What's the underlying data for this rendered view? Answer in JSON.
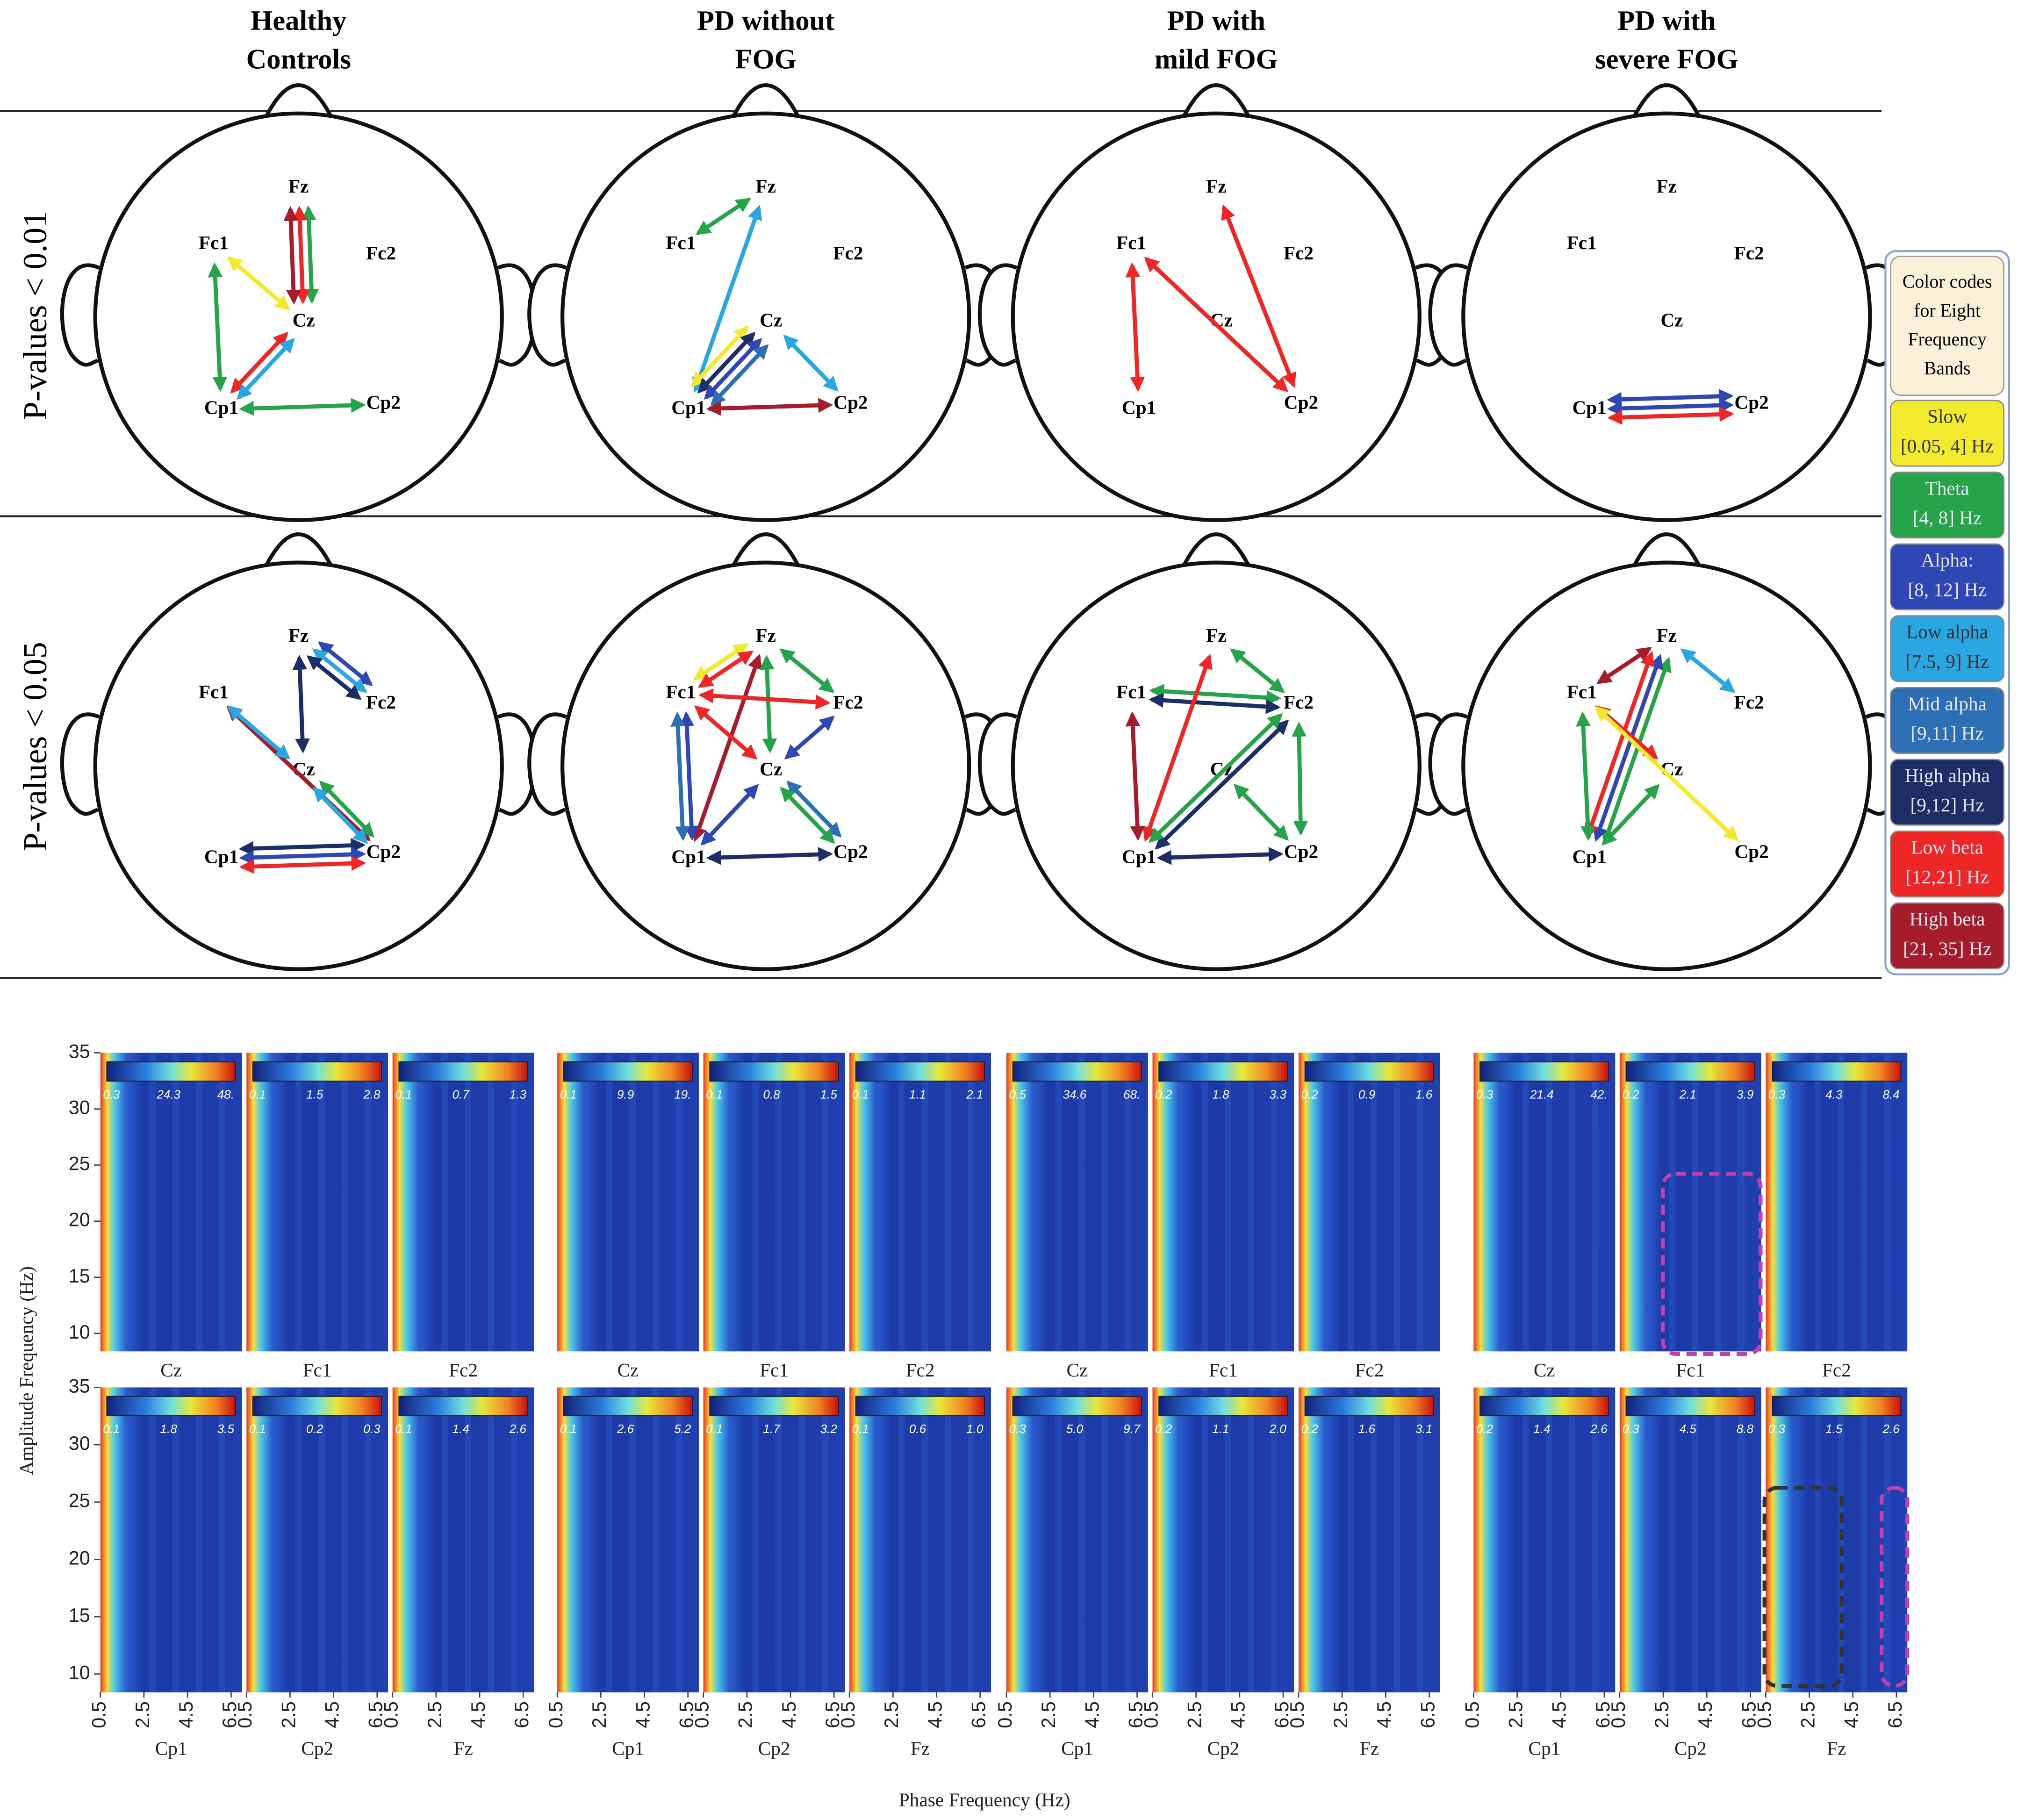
{
  "columns": [
    {
      "title": [
        "Healthy",
        "Controls"
      ]
    },
    {
      "title": [
        "PD without",
        "FOG"
      ]
    },
    {
      "title": [
        "PD with",
        "mild FOG"
      ]
    },
    {
      "title": [
        "PD with",
        "severe FOG"
      ]
    }
  ],
  "row_labels": [
    "P-values < 0.01",
    "P-values  < 0.05"
  ],
  "electrode_labels": [
    "Fz",
    "Fc1",
    "Fc2",
    "Cz",
    "Cp1",
    "Cp2"
  ],
  "legend": {
    "title": [
      "Color codes",
      "for Eight",
      "Frequency",
      "Bands"
    ],
    "bands": [
      {
        "name": "Slow",
        "range": "[0.05, 4] Hz",
        "color": "#f2ea2c"
      },
      {
        "name": "Theta",
        "range": "[4, 8] Hz",
        "color": "#27a34a"
      },
      {
        "name": "Alpha:",
        "range": "[8, 12] Hz",
        "color": "#2f47b5"
      },
      {
        "name": "Low alpha",
        "range": "[7.5, 9] Hz",
        "color": "#2aa6e2"
      },
      {
        "name": "Mid alpha",
        "range": "[9,11] Hz",
        "color": "#2d6fb4"
      },
      {
        "name": "High alpha",
        "range": "[9,12] Hz",
        "color": "#1d2e66"
      },
      {
        "name": "Low beta",
        "range": "[12,21] Hz",
        "color": "#ee2626"
      },
      {
        "name": "High beta",
        "range": "[21, 35] Hz",
        "color": "#a51c2c"
      }
    ]
  },
  "heads": [
    [
      {
        "connections": [
          [
            "Fz",
            "Cz",
            1
          ],
          [
            "Fz",
            "Cz",
            6
          ],
          [
            "Fz",
            "Cz",
            7
          ],
          [
            "Fc1",
            "Cp1",
            1
          ],
          [
            "Fc1",
            "Cz",
            0
          ],
          [
            "Cp1",
            "Cz",
            6
          ],
          [
            "Cp1",
            "Cz",
            3
          ],
          [
            "Cp1",
            "Cp2",
            1
          ]
        ]
      },
      {
        "connections": [
          [
            "Fc1",
            "Fz",
            1
          ],
          [
            "Fz",
            "Cp1",
            3
          ],
          [
            "Cp1",
            "Cz",
            0
          ],
          [
            "Cp1",
            "Cz",
            5
          ],
          [
            "Cp1",
            "Cz",
            2
          ],
          [
            "Cp1",
            "Cz",
            4
          ],
          [
            "Cz",
            "Cp2",
            3
          ],
          [
            "Cp1",
            "Cp2",
            7
          ]
        ]
      },
      {
        "connections": [
          [
            "Fc1",
            "Cp1",
            6
          ],
          [
            "Fc1",
            "Cp2",
            6
          ],
          [
            "Fz",
            "Cp2",
            6
          ]
        ]
      },
      {
        "connections": [
          [
            "Cp1",
            "Cp2",
            2
          ],
          [
            "Cp1",
            "Cp2",
            2
          ],
          [
            "Cp1",
            "Cp2",
            6
          ]
        ]
      }
    ],
    [
      {
        "connections": [
          [
            "Fz",
            "Fc2",
            2
          ],
          [
            "Fz",
            "Fc2",
            3
          ],
          [
            "Fz",
            "Fc2",
            5
          ],
          [
            "Fz",
            "Cz",
            5
          ],
          [
            "Fc1",
            "Cp2",
            7
          ],
          [
            "Fc1",
            "Cz",
            3
          ],
          [
            "Cz",
            "Cp2",
            1
          ],
          [
            "Cz",
            "Cp2",
            3
          ],
          [
            "Cp1",
            "Cp2",
            5
          ],
          [
            "Cp1",
            "Cp2",
            2
          ],
          [
            "Cp1",
            "Cp2",
            6
          ]
        ]
      },
      {
        "connections": [
          [
            "Fc1",
            "Fz",
            0
          ],
          [
            "Fc1",
            "Fz",
            6
          ],
          [
            "Fz",
            "Cp1",
            7
          ],
          [
            "Fz",
            "Cz",
            1
          ],
          [
            "Fz",
            "Fc2",
            1
          ],
          [
            "Fc1",
            "Fc2",
            6
          ],
          [
            "Fc1",
            "Cp1",
            2
          ],
          [
            "Fc1",
            "Cp1",
            4
          ],
          [
            "Fc1",
            "Cz",
            6
          ],
          [
            "Fc2",
            "Cz",
            2
          ],
          [
            "Cz",
            "Cp1",
            2
          ],
          [
            "Cz",
            "Cp2",
            4
          ],
          [
            "Cz",
            "Cp2",
            1
          ],
          [
            "Cp1",
            "Cp2",
            5
          ]
        ]
      },
      {
        "connections": [
          [
            "Fc1",
            "Fc2",
            1
          ],
          [
            "Fc1",
            "Fc2",
            5
          ],
          [
            "Fz",
            "Fc2",
            1
          ],
          [
            "Fz",
            "Cp1",
            6
          ],
          [
            "Fc1",
            "Cp1",
            7
          ],
          [
            "Fc2",
            "Cp1",
            5
          ],
          [
            "Fc2",
            "Cp1",
            1
          ],
          [
            "Fc2",
            "Cp2",
            1
          ],
          [
            "Cz",
            "Cp2",
            1
          ],
          [
            "Cp1",
            "Cp2",
            5
          ]
        ]
      },
      {
        "connections": [
          [
            "Fz",
            "Fc1",
            7
          ],
          [
            "Fz",
            "Cp1",
            1
          ],
          [
            "Fz",
            "Cp1",
            2
          ],
          [
            "Fz",
            "Cp1",
            6
          ],
          [
            "Fz",
            "Fc2",
            3
          ],
          [
            "Fc1",
            "Cp1",
            1
          ],
          [
            "Fc1",
            "Cz",
            6
          ],
          [
            "Fc1",
            "Cp2",
            0
          ],
          [
            "Cz",
            "Cp1",
            1
          ]
        ]
      }
    ]
  ],
  "heatmaps": {
    "ylabel": "Amplitude Frequency (Hz)",
    "xlabel": "Phase Frequency (Hz)",
    "ylim": [
      8.4,
      35
    ],
    "yticks": [
      10,
      15,
      20,
      25,
      30,
      35
    ],
    "xlim": [
      0.5,
      7
    ],
    "xticks": [
      0.5,
      2.5,
      4.5,
      6.5
    ],
    "rows": [
      {
        "channels": [
          "Cz",
          "Fc1",
          "Fc2"
        ],
        "groups": [
          {
            "colorbars": [
              [
                "0.3",
                "24.3",
                "48."
              ],
              [
                "0.1",
                "1.5",
                "2.8"
              ],
              [
                "0.1",
                "0.7",
                "1.3"
              ]
            ]
          },
          {
            "colorbars": [
              [
                "0.1",
                "9.9",
                "19."
              ],
              [
                "0.1",
                "0.8",
                "1.5"
              ],
              [
                "0.1",
                "1.1",
                "2.1"
              ]
            ]
          },
          {
            "colorbars": [
              [
                "0.5",
                "34.6",
                "68."
              ],
              [
                "0.2",
                "1.8",
                "3.3"
              ],
              [
                "0.2",
                "0.9",
                "1.6"
              ]
            ]
          },
          {
            "colorbars": [
              [
                "0.3",
                "21.4",
                "42."
              ],
              [
                "0.2",
                "2.1",
                "3.9"
              ],
              [
                "0.3",
                "4.3",
                "8.4"
              ]
            ]
          }
        ]
      },
      {
        "channels": [
          "Cp1",
          "Cp2",
          "Fz"
        ],
        "groups": [
          {
            "colorbars": [
              [
                "0.1",
                "1.8",
                "3.5"
              ],
              [
                "0.1",
                "0.2",
                "0.3"
              ],
              [
                "0.1",
                "1.4",
                "2.6"
              ]
            ]
          },
          {
            "colorbars": [
              [
                "0.1",
                "2.6",
                "5.2"
              ],
              [
                "0.1",
                "1.7",
                "3.2"
              ],
              [
                "0.1",
                "0.6",
                "1.0"
              ]
            ]
          },
          {
            "colorbars": [
              [
                "0.3",
                "5.0",
                "9.7"
              ],
              [
                "0.2",
                "1.1",
                "2.0"
              ],
              [
                "0.2",
                "1.6",
                "3.1"
              ]
            ]
          },
          {
            "colorbars": [
              [
                "0.2",
                "1.4",
                "2.6"
              ],
              [
                "0.3",
                "4.5",
                "8.8"
              ],
              [
                "0.3",
                "1.5",
                "2.6"
              ]
            ]
          }
        ]
      }
    ]
  }
}
